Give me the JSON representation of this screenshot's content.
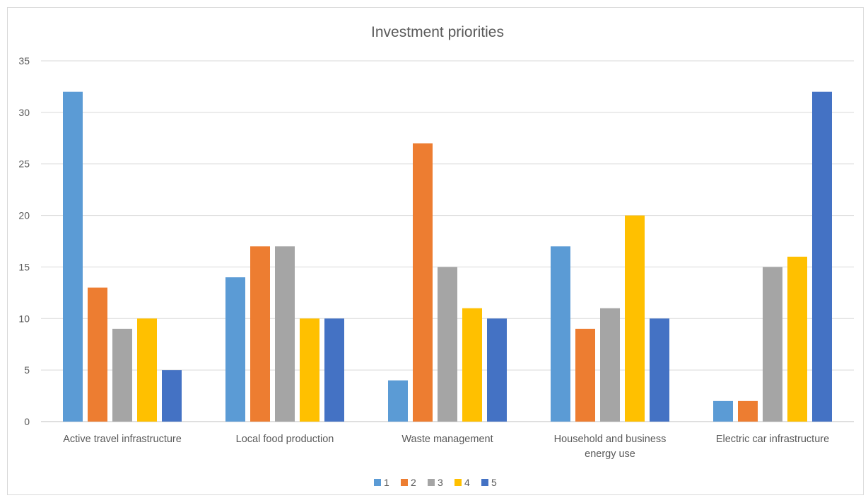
{
  "chart_data": {
    "type": "bar",
    "title": "Investment priorities",
    "categories": [
      [
        "Active travel infrastructure"
      ],
      [
        "Local food production"
      ],
      [
        "Waste management"
      ],
      [
        "Household and business",
        "energy use"
      ],
      [
        "Electric car infrastructure"
      ]
    ],
    "series": [
      {
        "name": "1",
        "color": "#5B9BD5",
        "values": [
          32,
          14,
          4,
          17,
          2
        ]
      },
      {
        "name": "2",
        "color": "#ED7D31",
        "values": [
          13,
          17,
          27,
          9,
          2
        ]
      },
      {
        "name": "3",
        "color": "#A5A5A5",
        "values": [
          9,
          17,
          15,
          11,
          15
        ]
      },
      {
        "name": "4",
        "color": "#FFC000",
        "values": [
          10,
          10,
          11,
          20,
          16
        ]
      },
      {
        "name": "5",
        "color": "#4472C4",
        "values": [
          5,
          10,
          10,
          10,
          32
        ]
      }
    ],
    "ylim": [
      0,
      35
    ],
    "yticks": [
      0,
      5,
      10,
      15,
      20,
      25,
      30,
      35
    ],
    "grid": true,
    "legend": "bottom"
  }
}
